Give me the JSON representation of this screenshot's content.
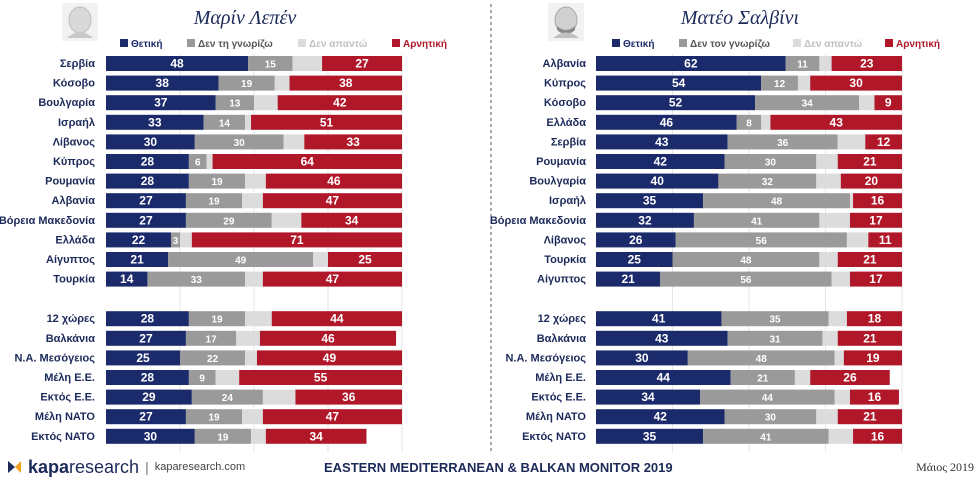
{
  "colors": {
    "positive": "#1b2a6b",
    "dont_know": "#9a9a9a",
    "no_answer": "#dcdcdc",
    "negative": "#b0182a"
  },
  "chart_data": [
    {
      "type": "bar",
      "title": "Μαρίν Λεπέν",
      "legend": [
        "Θετική",
        "Δεν τη γνωρίζω",
        "Δεν απαντώ",
        "Αρνητική"
      ],
      "categories": [
        "Σερβία",
        "Κόσοβο",
        "Βουλγαρία",
        "Ισραήλ",
        "Λίβανος",
        "Κύπρος",
        "Ρουμανία",
        "Αλβανία",
        "Βόρεια Μακεδονία",
        "Ελλάδα",
        "Αίγυπτος",
        "Τουρκία",
        "12 χώρες",
        "Βαλκάνια",
        "Ν.Α. Μεσόγειος",
        "Μέλη Ε.Ε.",
        "Εκτός Ε.Ε.",
        "Μέλη ΝΑΤΟ",
        "Εκτός ΝΑΤΟ"
      ],
      "series": [
        {
          "name": "Θετική",
          "values": [
            48,
            38,
            37,
            33,
            30,
            28,
            28,
            27,
            27,
            22,
            21,
            14,
            28,
            27,
            25,
            28,
            29,
            27,
            30
          ]
        },
        {
          "name": "Δεν τη γνωρίζω",
          "values": [
            15,
            19,
            13,
            14,
            30,
            6,
            19,
            19,
            29,
            3,
            49,
            33,
            19,
            17,
            22,
            9,
            24,
            19,
            19
          ]
        },
        {
          "name": "Δεν απαντώ",
          "values": [
            10,
            5,
            8,
            2,
            7,
            2,
            7,
            7,
            10,
            4,
            5,
            6,
            9,
            8,
            4,
            8,
            11,
            7,
            5
          ]
        },
        {
          "name": "Αρνητική",
          "values": [
            27,
            38,
            42,
            51,
            33,
            64,
            46,
            47,
            34,
            71,
            25,
            47,
            44,
            46,
            49,
            55,
            36,
            47,
            34
          ]
        }
      ]
    },
    {
      "type": "bar",
      "title": "Ματέο Σαλβίνι",
      "legend": [
        "Θετική",
        "Δεν τον γνωρίζω",
        "Δεν απαντώ",
        "Αρνητική"
      ],
      "categories": [
        "Αλβανία",
        "Κύπρος",
        "Κόσοβο",
        "Ελλάδα",
        "Σερβία",
        "Ρουμανία",
        "Βουλγαρία",
        "Ισραήλ",
        "Βόρεια Μακεδονία",
        "Λίβανος",
        "Τουρκία",
        "Αίγυπτος",
        "12 χώρες",
        "Βαλκάνια",
        "Ν.Α. Μεσόγειος",
        "Μέλη Ε.Ε.",
        "Εκτός Ε.Ε.",
        "Μέλη ΝΑΤΟ",
        "Εκτός ΝΑΤΟ"
      ],
      "series": [
        {
          "name": "Θετική",
          "values": [
            62,
            54,
            52,
            46,
            43,
            42,
            40,
            35,
            32,
            26,
            25,
            21,
            41,
            43,
            30,
            44,
            34,
            42,
            35
          ]
        },
        {
          "name": "Δεν τον γνωρίζω",
          "values": [
            11,
            12,
            34,
            8,
            36,
            30,
            32,
            48,
            41,
            56,
            48,
            56,
            35,
            31,
            48,
            21,
            44,
            30,
            41
          ]
        },
        {
          "name": "Δεν απαντώ",
          "values": [
            4,
            4,
            5,
            3,
            9,
            7,
            8,
            1,
            10,
            7,
            6,
            6,
            6,
            5,
            3,
            5,
            5,
            7,
            8
          ]
        },
        {
          "name": "Αρνητική",
          "values": [
            23,
            30,
            9,
            43,
            12,
            21,
            20,
            16,
            17,
            11,
            21,
            17,
            18,
            21,
            19,
            26,
            16,
            21,
            16
          ]
        }
      ]
    }
  ],
  "footer": {
    "brand_bold": "kapa",
    "brand_thin": "research",
    "separator": "|",
    "url": "kaparesearch.com",
    "monitor": "EASTERN MEDITERRANEAN & BALKAN MONITOR 2019",
    "date": "Μάιος 2019"
  }
}
